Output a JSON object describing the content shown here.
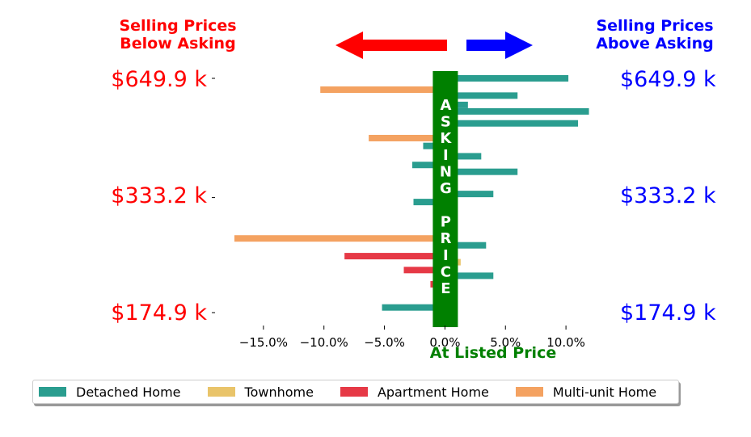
{
  "header": {
    "left_line1": "Selling Prices",
    "left_line2": "Below Asking",
    "right_line1": "Selling Prices",
    "right_line2": "Above Asking"
  },
  "center_label": "ASKING PRICE",
  "xlabel": "At Listed Price",
  "colors": {
    "below": "#ff0000",
    "above": "#0000ff",
    "center": "#008000",
    "Detached Home": "#2a9d8f",
    "Townhome": "#e9c46a",
    "Apartment Home": "#e63946",
    "Multi-unit Home": "#f4a261"
  },
  "chart_data": {
    "type": "bar",
    "orientation": "horizontal",
    "xlim": [
      -19,
      13
    ],
    "x_ticks": [
      "−15.0%",
      "−10.0%",
      "−5.0%",
      "0.0%",
      "5.0%",
      "10.0%"
    ],
    "x_tick_values": [
      -15,
      -10,
      -5,
      0,
      5,
      10
    ],
    "y_tick_labels": [
      "$649.9 k",
      "$333.2 k",
      "$174.9 k"
    ],
    "y_tick_values": [
      649.9,
      333.2,
      174.9
    ],
    "y_log": true,
    "ylim": [
      160,
      700
    ],
    "legend_placement": "bottom",
    "series": [
      {
        "name": "Detached Home",
        "points": [
          {
            "price": 650,
            "pct": 10.2
          },
          {
            "price": 590,
            "pct": 6
          },
          {
            "price": 560,
            "pct": 1.9
          },
          {
            "price": 540,
            "pct": 11.9
          },
          {
            "price": 505,
            "pct": 11
          },
          {
            "price": 445,
            "pct": -1.8
          },
          {
            "price": 420,
            "pct": 3
          },
          {
            "price": 400,
            "pct": -2.7
          },
          {
            "price": 385,
            "pct": 6
          },
          {
            "price": 340,
            "pct": 4
          },
          {
            "price": 325,
            "pct": -2.6
          },
          {
            "price": 255,
            "pct": 3.4
          },
          {
            "price": 215,
            "pct": 4
          },
          {
            "price": 180,
            "pct": -5.2
          }
        ]
      },
      {
        "name": "Townhome",
        "points": [
          {
            "price": 232,
            "pct": 1.3
          }
        ]
      },
      {
        "name": "Apartment Home",
        "points": [
          {
            "price": 240,
            "pct": -8.3
          },
          {
            "price": 222,
            "pct": -3.4
          },
          {
            "price": 205,
            "pct": -1.2
          }
        ]
      },
      {
        "name": "Multi-unit Home",
        "points": [
          {
            "price": 610,
            "pct": -10.3
          },
          {
            "price": 465,
            "pct": -6.3
          },
          {
            "price": 265,
            "pct": -17.4
          }
        ]
      }
    ]
  }
}
